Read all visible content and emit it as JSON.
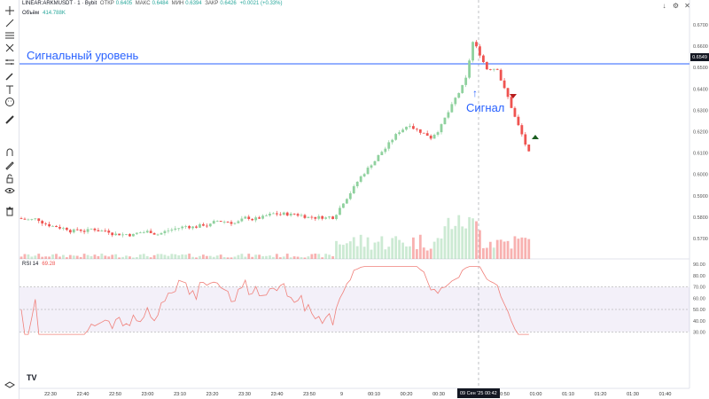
{
  "header": {
    "symbol": "LINEAR:ARKMUSDT · 1 · Bybit",
    "open_label": "ОТКР",
    "open": "0.6405",
    "high_label": "МАКС",
    "high": "0.6484",
    "low_label": "МИН",
    "low": "0.6394",
    "close_label": "ЗАКР",
    "close": "0.6426",
    "change": "+0.0021 (+0.33%)"
  },
  "volume": {
    "label": "Объём",
    "value": "414.788K"
  },
  "rsi": {
    "label": "RSI 14",
    "value": "69.28"
  },
  "annotations": {
    "level_label": "Сигнальный уровень",
    "signal_label": "Сигнал",
    "signal_arrow": "↑"
  },
  "price_tag": "0.6549",
  "time_tag": "09 Сен '25  00:42",
  "price_axis": [
    "0.6700",
    "0.6600",
    "0.6500",
    "0.6400",
    "0.6300",
    "0.6200",
    "0.6100",
    "0.6000",
    "0.5900",
    "0.5800",
    "0.5700"
  ],
  "rsi_axis": [
    "90.00",
    "80.00",
    "70.00",
    "60.00",
    "50.00",
    "40.00",
    "30.00"
  ],
  "time_axis": [
    "22:30",
    "22:40",
    "22:50",
    "23:00",
    "23:10",
    "23:20",
    "23:30",
    "23:40",
    "23:50",
    "9",
    "00:10",
    "00:20",
    "00:30",
    "00:40",
    "00:50",
    "01:00",
    "01:10",
    "01:20",
    "01:30",
    "01:40"
  ],
  "logo": "TV",
  "colors": {
    "up": "#26a69a",
    "up_body": "#8fd19e",
    "down": "#ef5350",
    "level": "#2962ff",
    "rsi": "#f0807a",
    "rsi_band": "#7e57c2"
  },
  "toolbar_icons": [
    "crosshair-icon",
    "trend-line-icon",
    "fib-icon",
    "pitchfork-icon",
    "measure-icon",
    "brush-icon",
    "text-icon",
    "emoji-icon",
    "ruler-icon",
    "magnet-icon",
    "lock-drawing-icon",
    "lock-icon",
    "eye-icon",
    "trash-icon",
    "layers-icon"
  ],
  "top_right_icons": [
    "arrow-down-icon",
    "settings-icon",
    "close-icon"
  ]
}
